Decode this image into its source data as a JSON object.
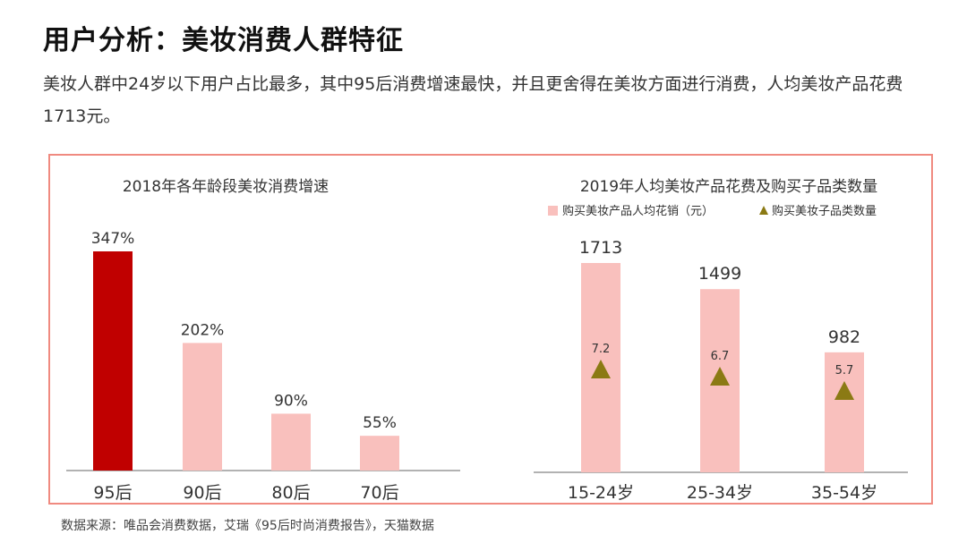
{
  "page": {
    "title": "用户分析：美妆消费人群特征",
    "summary": "美妆人群中24岁以下用户占比最多，其中95后消费增速最快，并且更舍得在美妆方面进行消费，人均美妆产品花费1713元。",
    "source": "数据来源：唯品会消费数据，艾瑞《95后时尚消费报告》，天猫数据"
  },
  "colors": {
    "highlight_bar": "#c00000",
    "bar": "#f9c0bd",
    "marker": "#8b7a14",
    "panel_border": "#f08a80",
    "axis": "#999999"
  },
  "chart_data": [
    {
      "type": "bar",
      "title": "2018年各年龄段美妆消费增速",
      "categories": [
        "95后",
        "90后",
        "80后",
        "70后"
      ],
      "values": [
        347,
        202,
        90,
        55
      ],
      "value_labels": [
        "347%",
        "202%",
        "90%",
        "55%"
      ],
      "unit": "%",
      "highlight_index": 0,
      "ylim": [
        0,
        400
      ],
      "grid": false
    },
    {
      "type": "bar",
      "title": "2019年人均美妆产品花费及购买子品类数量",
      "legend_position": "top-center",
      "categories": [
        "15-24岁",
        "25-34岁",
        "35-54岁"
      ],
      "series": [
        {
          "name": "购买美妆产品人均花销（元）",
          "type": "bar",
          "values": [
            1713,
            1499,
            982
          ],
          "value_labels": [
            "1713",
            "1499",
            "982"
          ]
        },
        {
          "name": "购买美妆子品类数量",
          "type": "scatter",
          "marker": "triangle",
          "values": [
            7.2,
            6.7,
            5.7
          ],
          "value_labels": [
            "7.2",
            "6.7",
            "5.7"
          ]
        }
      ],
      "ylim": [
        0,
        2000
      ],
      "y2lim": [
        0,
        12
      ],
      "grid": false
    }
  ]
}
